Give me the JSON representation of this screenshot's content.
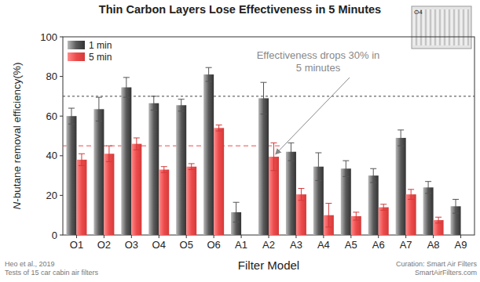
{
  "chart_data": {
    "type": "bar",
    "title": "Thin Carbon Layers Lose Effectiveness in 5 Minutes",
    "y_label": "N-butane removal efficiency(%)",
    "x_label": "Filter Model",
    "categories": [
      "O1",
      "O2",
      "O3",
      "O4",
      "O5",
      "O6",
      "A1",
      "A2",
      "A3",
      "A4",
      "A5",
      "A6",
      "A7",
      "A8",
      "A9"
    ],
    "series": [
      {
        "name": "1 min",
        "color": "#5a5a5a",
        "values": [
          60,
          63.5,
          74.5,
          66.5,
          65.5,
          81,
          11.5,
          69,
          42,
          34.5,
          33.5,
          30,
          49,
          24,
          14.5
        ],
        "errors": [
          4,
          6,
          5,
          3.5,
          3,
          3.5,
          5,
          8,
          4.5,
          7,
          4,
          3.5,
          4,
          3,
          3.5
        ]
      },
      {
        "name": "5 min",
        "color": "#ee4b4b",
        "values": [
          38,
          41,
          46,
          33,
          34.5,
          54,
          null,
          39.5,
          20.5,
          10,
          9.5,
          14,
          20.5,
          7.5,
          null
        ],
        "errors": [
          3,
          4,
          3,
          1.5,
          1.5,
          1.5,
          null,
          7,
          3,
          6,
          2,
          1.5,
          2.5,
          1.5,
          null
        ]
      }
    ],
    "reference_lines": [
      {
        "value": 70,
        "color": "#444444",
        "line_style": "dotted"
      },
      {
        "value": 45,
        "color": "#ee4b4b",
        "line_style": "dashed",
        "span": [
          "O1",
          "A2"
        ]
      }
    ],
    "annotation": [
      "Effectiveness drops 30% in",
      "5 minutes"
    ],
    "inset_label": "O4",
    "source": [
      "Heo et al., 2019",
      "Tests of 15 car cabin air filters"
    ],
    "credit": [
      "Curation: Smart Air Filters",
      "SmartAirFilters.com"
    ],
    "ylim": [
      0,
      100
    ],
    "yticks": [
      0,
      20,
      40,
      60,
      80,
      100
    ],
    "legend": "upper left",
    "grid": false
  }
}
